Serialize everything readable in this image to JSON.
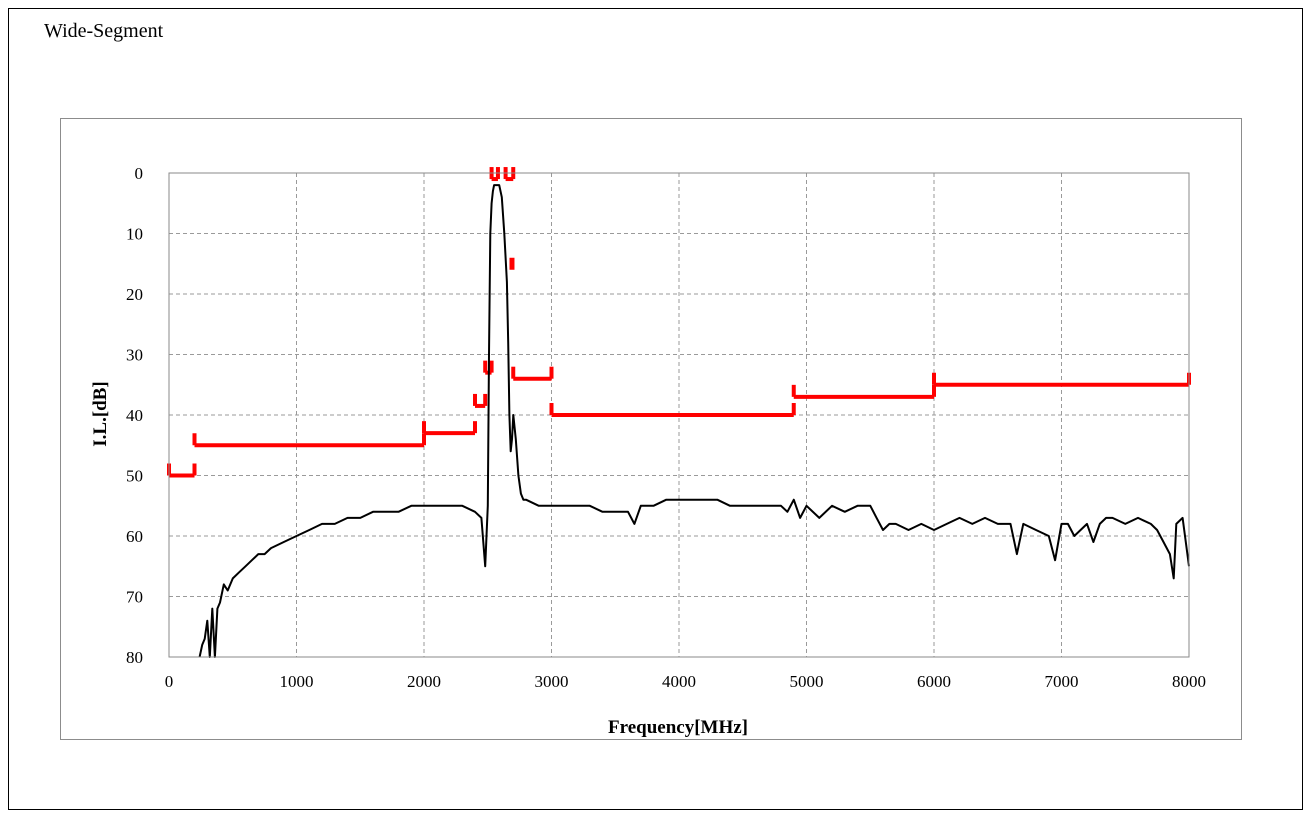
{
  "page": {
    "title": "Wide-Segment"
  },
  "colors": {
    "measured": "#000000",
    "spec": "#ff0000",
    "grid": "#9a9a9a",
    "border": "#8c8c8c"
  },
  "chart_data": {
    "type": "line",
    "title": "",
    "xlabel": "Frequency[MHz]",
    "ylabel": "I.L.[dB]",
    "xlim": [
      0,
      8000
    ],
    "ylim": [
      0,
      80
    ],
    "y_inverted": true,
    "grid": true,
    "x_ticks": [
      0,
      1000,
      2000,
      3000,
      4000,
      5000,
      6000,
      7000,
      8000
    ],
    "y_ticks": [
      0,
      10,
      20,
      30,
      40,
      50,
      60,
      70,
      80
    ],
    "series": [
      {
        "role": "measured",
        "color": "#000000",
        "x": [
          240,
          260,
          280,
          300,
          320,
          340,
          360,
          380,
          400,
          430,
          460,
          500,
          550,
          600,
          650,
          700,
          750,
          800,
          900,
          1000,
          1100,
          1200,
          1300,
          1400,
          1500,
          1600,
          1700,
          1800,
          1900,
          2000,
          2100,
          2200,
          2300,
          2400,
          2450,
          2480,
          2500,
          2510,
          2520,
          2530,
          2540,
          2550,
          2570,
          2590,
          2610,
          2630,
          2650,
          2660,
          2670,
          2680,
          2690,
          2700,
          2720,
          2740,
          2760,
          2780,
          2800,
          2900,
          3000,
          3100,
          3200,
          3300,
          3400,
          3500,
          3600,
          3650,
          3700,
          3800,
          3900,
          4000,
          4100,
          4200,
          4300,
          4400,
          4500,
          4600,
          4700,
          4800,
          4850,
          4900,
          4950,
          5000,
          5100,
          5200,
          5300,
          5400,
          5500,
          5550,
          5600,
          5650,
          5700,
          5800,
          5900,
          6000,
          6100,
          6200,
          6300,
          6400,
          6500,
          6600,
          6650,
          6700,
          6800,
          6900,
          6950,
          7000,
          7050,
          7100,
          7200,
          7250,
          7300,
          7350,
          7400,
          7500,
          7600,
          7700,
          7750,
          7800,
          7850,
          7880,
          7900,
          7950,
          8000
        ],
        "y": [
          80,
          78,
          77,
          74,
          80,
          72,
          80,
          72,
          71,
          68,
          69,
          67,
          66,
          65,
          64,
          63,
          63,
          62,
          61,
          60,
          59,
          58,
          58,
          57,
          57,
          56,
          56,
          56,
          55,
          55,
          55,
          55,
          55,
          56,
          57,
          65,
          55,
          30,
          10,
          5,
          3,
          2,
          2,
          2,
          4,
          10,
          18,
          28,
          40,
          46,
          44,
          40,
          44,
          50,
          53,
          54,
          54,
          55,
          55,
          55,
          55,
          55,
          56,
          56,
          56,
          58,
          55,
          55,
          54,
          54,
          54,
          54,
          54,
          55,
          55,
          55,
          55,
          55,
          56,
          54,
          57,
          55,
          57,
          55,
          56,
          55,
          55,
          57,
          59,
          58,
          58,
          59,
          58,
          59,
          58,
          57,
          58,
          57,
          58,
          58,
          63,
          58,
          59,
          60,
          64,
          58,
          58,
          60,
          58,
          61,
          58,
          57,
          57,
          58,
          57,
          58,
          59,
          61,
          63,
          67,
          58,
          57,
          65
        ]
      }
    ],
    "spec_segments": [
      {
        "x": [
          0,
          200
        ],
        "y": 50
      },
      {
        "x": [
          200,
          2000
        ],
        "y": 45
      },
      {
        "x": [
          2000,
          2400
        ],
        "y": 43
      },
      {
        "x": [
          2400,
          2480
        ],
        "y": 38.5
      },
      {
        "x": [
          2480,
          2530
        ],
        "y": 33
      },
      {
        "x": [
          2530,
          2580
        ],
        "y": 1
      },
      {
        "x": [
          2640,
          2700
        ],
        "y": 1
      },
      {
        "x": [
          2700,
          3000
        ],
        "y": 34
      },
      {
        "x": [
          3000,
          4900
        ],
        "y": 40
      },
      {
        "x": [
          4900,
          6000
        ],
        "y": 37
      },
      {
        "x": [
          6000,
          8000
        ],
        "y": 35
      }
    ],
    "spec_points": [
      {
        "x": 2690,
        "y": 15
      }
    ]
  }
}
